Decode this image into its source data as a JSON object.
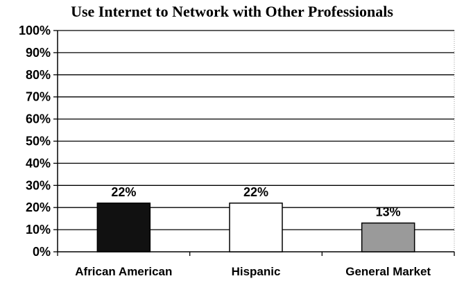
{
  "chart_data": {
    "type": "bar",
    "title": "Use Internet to Network with Other Professionals",
    "categories": [
      "African American",
      "Hispanic",
      "General Market"
    ],
    "values": [
      22,
      22,
      13
    ],
    "data_labels": [
      "22%",
      "22%",
      "13%"
    ],
    "bar_colors": [
      "#111111",
      "#ffffff",
      "#9a9a9a"
    ],
    "ylim": [
      0,
      100
    ],
    "yticks": [
      0,
      10,
      20,
      30,
      40,
      50,
      60,
      70,
      80,
      90,
      100
    ],
    "ytick_labels": [
      "0%",
      "10%",
      "20%",
      "30%",
      "40%",
      "50%",
      "60%",
      "70%",
      "80%",
      "90%",
      "100%"
    ],
    "xlabel": "",
    "ylabel": "",
    "grid": true,
    "legend": "none"
  }
}
